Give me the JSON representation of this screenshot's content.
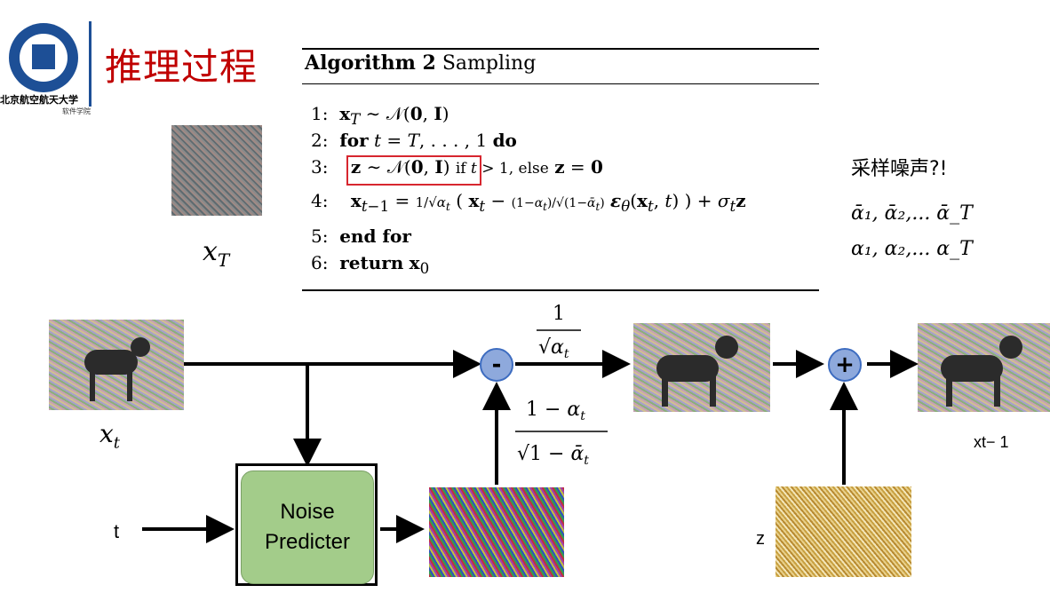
{
  "header": {
    "title": "推理过程",
    "logo_name": "北京航空航天大学",
    "logo_sub": "软件学院"
  },
  "algorithm": {
    "title_bold": "Algorithm 2",
    "title_rest": " Sampling",
    "lines": [
      "1:  x_T ~ N(0, I)",
      "2:  for t = T, . . . , 1 do",
      "3:    z ~ N(0, I) if t > 1, else z = 0",
      "4:    x_{t-1} = 1/√α_t ( x_t − (1−α_t)/√(1−ᾱ_t) ε_θ(x_t, t) ) + σ_t z",
      "5:  end for",
      "6:  return x_0"
    ]
  },
  "side_notes": {
    "question": "采样噪声?!",
    "alpha_bar": "ᾱ₁, ᾱ₂,... ᾱ_T",
    "alpha": "α₁, α₂,... α_T"
  },
  "labels": {
    "xT": "x_T",
    "xt": "x_t",
    "out": "xt− 1",
    "t": "t",
    "z": "z",
    "coef_top": "1 / √α_t",
    "coef_bottom": "(1 − α_t) / √(1 − ᾱ_t)",
    "minus": "-",
    "plus": "+"
  },
  "predictor": {
    "line1": "Noise",
    "line2": "Predicter"
  },
  "colors": {
    "title_red": "#c00000",
    "brand_blue": "#1d4f96",
    "predictor_green": "#a3cc8a",
    "operator_blue": "#8ea9dc",
    "highlight_red": "#d7262f"
  }
}
